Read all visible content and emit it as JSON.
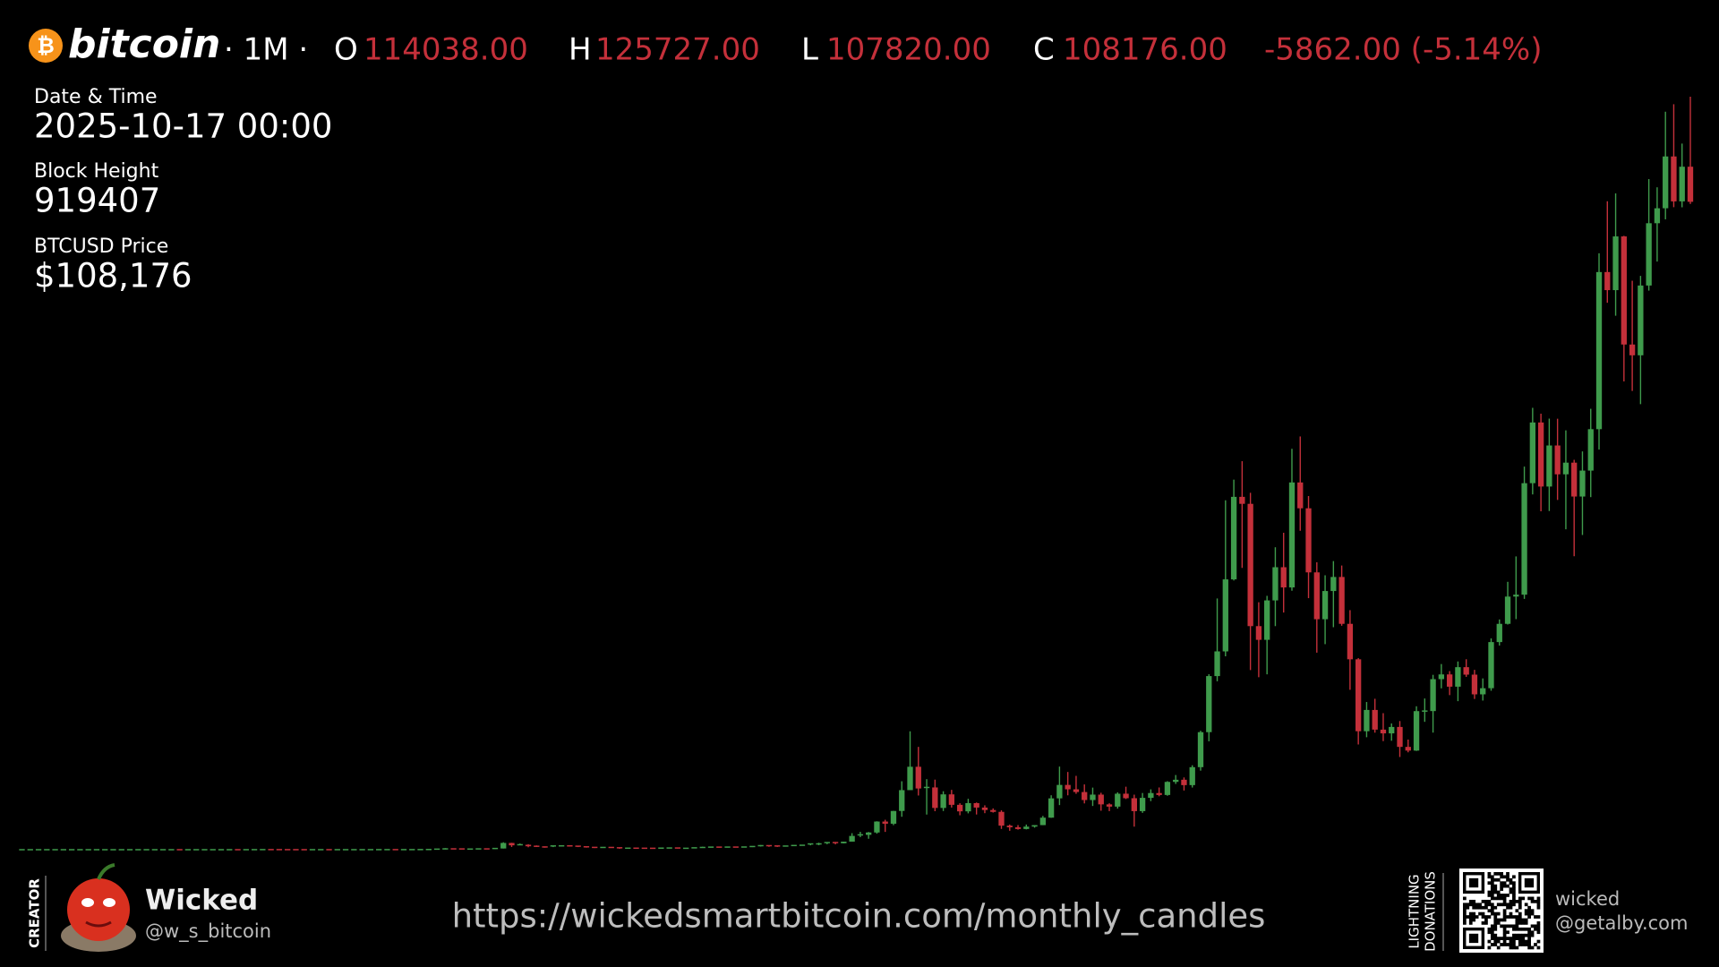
{
  "header": {
    "logo_symbol": "₿",
    "logo": "bitcoin",
    "interval": "· 1M ·",
    "open_label": "O",
    "open": "114038.00",
    "high_label": "H",
    "high": "125727.00",
    "low_label": "L",
    "low": "107820.00",
    "close_label": "C",
    "close": "108176.00",
    "change": "-5862.00 (-5.14%)"
  },
  "info": {
    "date_label": "Date & Time",
    "date": "2025-10-17 00:00",
    "block_label": "Block Height",
    "block": "919407",
    "price_label": "BTCUSD Price",
    "price": "$108,176"
  },
  "footer": {
    "creator_label": "CREATOR",
    "creator_name": "Wicked",
    "creator_handle": "@w_s_bitcoin",
    "url": "https://wickedsmartbitcoin.com/monthly_candles",
    "donation_label_1": "LIGHTNING",
    "donation_label_2": "DONATIONS",
    "lightning_user": "wicked",
    "lightning_domain": "@getalby.com"
  },
  "chart_data": {
    "type": "candlestick",
    "up_color": "#3f9b4c",
    "down_color": "#c4303a",
    "open": [
      0,
      0,
      0,
      0,
      0,
      0,
      0,
      0,
      0,
      0,
      0,
      0,
      0,
      0,
      0,
      0,
      0,
      0,
      0.05,
      0.07,
      0.06,
      0.06,
      0.19,
      0.21,
      0.3,
      0.52,
      0.86,
      0.78,
      3.5,
      8.7,
      16.1,
      13.4,
      8.2,
      5.1,
      3.2,
      3,
      4.7,
      5.5,
      4.9,
      4.9,
      5,
      5.2,
      6.7,
      9.4,
      10.2,
      12.4,
      11.2,
      12.6,
      13.5,
      20.4,
      33.4,
      93,
      139,
      129,
      97,
      106,
      135,
      133,
      204,
      1129,
      732,
      829,
      573,
      458,
      448,
      628,
      640,
      586,
      481,
      387,
      338,
      378,
      320,
      217,
      254,
      244,
      236,
      230,
      263,
      284,
      230,
      236,
      314,
      377,
      430,
      369,
      437,
      416,
      448,
      531,
      674,
      624,
      574,
      608,
      700,
      742,
      964,
      970,
      1190,
      1080,
      1348,
      2300,
      2480,
      2875,
      4703,
      4339,
      6468,
      9947,
      13850,
      10221,
      10397,
      6973,
      9240,
      7494,
      6404,
      7780,
      7037,
      6625,
      6318,
      4017,
      3742,
      3457,
      3854,
      4105,
      5350,
      8574,
      10817,
      10085,
      9630,
      8293,
      9199,
      7569,
      7194,
      9350,
      8599,
      6438,
      8658,
      9461,
      9138,
      11323,
      11680,
      10784,
      13781,
      19626,
      28990,
      33114,
      45137,
      58918,
      57750,
      37332,
      35040,
      41626,
      47166,
      43791,
      61318,
      57005,
      46306,
      38483,
      43194,
      45538,
      37714,
      31792,
      19785,
      23336,
      20050,
      19423,
      20495,
      17168,
      16548,
      23139,
      23147,
      28478,
      29268,
      27219,
      30477,
      29230,
      25940,
      26967,
      34667,
      37713,
      42265,
      42582,
      61198,
      71334,
      60637,
      67492,
      62678,
      64626,
      58970,
      63300,
      70215,
      96450,
      93430,
      102400,
      84350,
      82550,
      94200,
      104600,
      107100,
      115750,
      108250,
      114038
    ],
    "high": [
      0,
      0,
      0,
      0,
      0,
      0,
      0,
      0,
      0,
      0,
      0,
      0,
      0,
      0,
      0,
      0,
      0,
      0,
      0.1,
      0.07,
      0.07,
      0.2,
      0.5,
      0.3,
      0.53,
      1.1,
      0.95,
      3.9,
      9,
      31.9,
      16.1,
      13.4,
      8.4,
      5.3,
      3.5,
      4.8,
      7.2,
      6.2,
      5.5,
      5.3,
      5.2,
      6.8,
      9.5,
      16,
      12.6,
      12.7,
      12.8,
      13.7,
      21,
      35,
      95,
      266,
      140,
      131,
      111,
      135,
      145,
      215,
      1242,
      1156,
      1030,
      920,
      711,
      548,
      650,
      680,
      655,
      600,
      510,
      420,
      456,
      379,
      320,
      263,
      300,
      260,
      250,
      268,
      300,
      290,
      246,
      331,
      500,
      470,
      460,
      446,
      440,
      468,
      550,
      780,
      680,
      620,
      620,
      720,
      750,
      980,
      1170,
      1230,
      1300,
      1350,
      2760,
      2980,
      2960,
      4750,
      5000,
      6480,
      11430,
      19770,
      17170,
      11780,
      11700,
      9760,
      9990,
      7760,
      8500,
      7880,
      7410,
      6900,
      6580,
      4200,
      4110,
      4200,
      4100,
      5640,
      9090,
      13880,
      12980,
      12330,
      10900,
      10370,
      9510,
      7750,
      9580,
      10520,
      9190,
      9470,
      10080,
      10390,
      11440,
      12470,
      12070,
      14100,
      19860,
      29300,
      41950,
      58350,
      61790,
      64870,
      59590,
      41320,
      42390,
      50500,
      52920,
      66930,
      69000,
      59050,
      47990,
      45820,
      48190,
      47450,
      40000,
      31990,
      24660,
      25200,
      22800,
      21080,
      21480,
      18390,
      23950,
      25250,
      29200,
      31000,
      29820,
      31430,
      31800,
      30030,
      28600,
      35280,
      38440,
      44730,
      48970,
      63970,
      73780,
      72800,
      71980,
      71960,
      70020,
      65100,
      66500,
      73620,
      99590,
      108270,
      109590,
      102500,
      95000,
      95800,
      111970,
      110600,
      123220,
      124470,
      117900,
      125727
    ],
    "low": [
      0,
      0,
      0,
      0,
      0,
      0,
      0,
      0,
      0,
      0,
      0,
      0,
      0,
      0,
      0,
      0,
      0,
      0,
      0.05,
      0.06,
      0.06,
      0.06,
      0.2,
      0.2,
      0.29,
      0.8,
      0.72,
      0.76,
      3,
      8.7,
      12.6,
      6.9,
      4.8,
      1.9,
      2.1,
      2.9,
      5,
      4.1,
      4.7,
      4.8,
      4.9,
      5.2,
      6.5,
      7.4,
      10.1,
      9.8,
      10.2,
      12.3,
      13.3,
      19.5,
      33,
      50,
      79,
      65,
      64,
      101,
      85,
      105,
      198,
      455,
      750,
      408,
      455,
      340,
      437,
      550,
      566,
      440,
      346,
      276,
      316,
      310,
      150,
      214,
      237,
      214,
      230,
      220,
      254,
      197,
      230,
      236,
      300,
      350,
      351,
      368,
      408,
      414,
      440,
      528,
      480,
      460,
      590,
      604,
      690,
      735,
      750,
      920,
      890,
      1060,
      1370,
      2100,
      1830,
      2680,
      2970,
      4100,
      5500,
      10750,
      9050,
      5870,
      6430,
      6460,
      7040,
      5750,
      6070,
      5880,
      6100,
      6200,
      3470,
      3160,
      3350,
      3390,
      3680,
      4100,
      5320,
      7450,
      9080,
      9330,
      7730,
      7300,
      6510,
      6440,
      6860,
      8460,
      3850,
      6150,
      8110,
      8920,
      9010,
      10980,
      9880,
      10380,
      13200,
      18100,
      28120,
      32300,
      44950,
      47050,
      30000,
      28800,
      29280,
      37330,
      39600,
      43250,
      53250,
      42000,
      32900,
      34320,
      37150,
      37390,
      26700,
      17570,
      18780,
      19540,
      18130,
      18190,
      15480,
      16260,
      16490,
      21350,
      19550,
      26940,
      25810,
      24800,
      28860,
      25170,
      24900,
      26540,
      34090,
      37600,
      38500,
      41880,
      59320,
      56500,
      56550,
      58400,
      53500,
      49000,
      52550,
      58870,
      66800,
      91320,
      89160,
      78180,
      76600,
      74400,
      93350,
      98200,
      105250,
      107280,
      107260,
      107820
    ],
    "close": [
      0,
      0,
      0,
      0,
      0,
      0,
      0,
      0,
      0,
      0,
      0,
      0,
      0,
      0,
      0,
      0,
      0,
      0,
      0.07,
      0.06,
      0.06,
      0.19,
      0.21,
      0.3,
      0.52,
      0.86,
      0.78,
      3.5,
      8.7,
      16.1,
      13.4,
      8.2,
      5.1,
      3.2,
      3,
      4.7,
      5.5,
      4.9,
      4.9,
      5,
      5.2,
      6.7,
      9.4,
      10.2,
      12.4,
      11.2,
      12.6,
      13.5,
      20.4,
      33.4,
      93,
      139,
      129,
      97,
      106,
      135,
      133,
      204,
      1129,
      732,
      829,
      573,
      458,
      448,
      628,
      640,
      586,
      481,
      387,
      338,
      378,
      320,
      217,
      254,
      244,
      236,
      230,
      263,
      284,
      230,
      236,
      314,
      377,
      430,
      369,
      437,
      416,
      448,
      531,
      674,
      624,
      574,
      608,
      700,
      742,
      964,
      970,
      1190,
      1080,
      1348,
      2300,
      2480,
      2875,
      4703,
      4339,
      6468,
      9947,
      13850,
      10221,
      10397,
      6973,
      9240,
      7494,
      6404,
      7780,
      7037,
      6625,
      6318,
      4017,
      3742,
      3457,
      3854,
      4105,
      5350,
      8574,
      10817,
      10085,
      9630,
      8293,
      9199,
      7569,
      7194,
      9350,
      8599,
      6438,
      8658,
      9461,
      9138,
      11323,
      11680,
      10784,
      13781,
      19626,
      28990,
      33114,
      45137,
      58918,
      57750,
      37332,
      35040,
      41626,
      47166,
      43791,
      61318,
      57005,
      46306,
      38483,
      43194,
      45538,
      37714,
      31792,
      19785,
      23336,
      20050,
      19423,
      20495,
      17168,
      16548,
      23139,
      23147,
      28478,
      29268,
      27219,
      30477,
      29230,
      25940,
      26967,
      34667,
      37713,
      42265,
      42582,
      61198,
      71334,
      60637,
      67492,
      62678,
      64626,
      58970,
      63300,
      70215,
      96450,
      93430,
      102400,
      84350,
      82550,
      94200,
      104600,
      107100,
      115750,
      108250,
      114038,
      108176
    ]
  }
}
